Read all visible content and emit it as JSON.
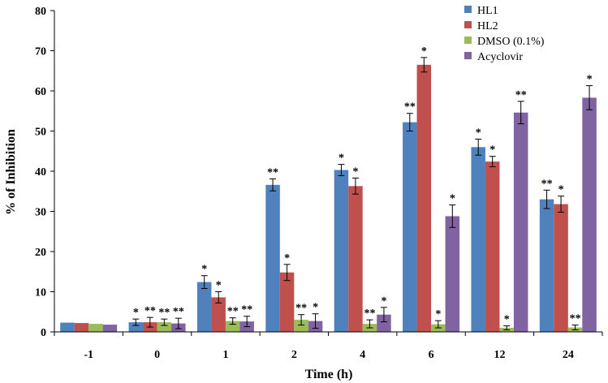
{
  "chart_data": {
    "type": "bar",
    "title": "",
    "xlabel": "Time (h)",
    "ylabel": "% of Inhibition",
    "ylim": [
      0,
      80
    ],
    "yticks": [
      0,
      10,
      20,
      30,
      40,
      50,
      60,
      70,
      80
    ],
    "grid": false,
    "legend_position": "top-right",
    "categories": [
      "-1",
      "0",
      "1",
      "2",
      "4",
      "6",
      "12",
      "24"
    ],
    "series": [
      {
        "name": "HL1",
        "color": "#4F81BD",
        "values": [
          2.3,
          2.4,
          12.4,
          36.6,
          40.3,
          52.2,
          46.0,
          33.0
        ],
        "errors": [
          0,
          0.8,
          1.6,
          1.5,
          1.4,
          2.2,
          2.0,
          2.3
        ],
        "significance": [
          "",
          "*",
          "*",
          "**",
          "*",
          "**",
          "*",
          "**"
        ]
      },
      {
        "name": "HL2",
        "color": "#C0504D",
        "values": [
          2.2,
          2.4,
          8.6,
          14.8,
          36.3,
          66.5,
          42.4,
          31.8
        ],
        "errors": [
          0,
          1.2,
          1.4,
          2.0,
          2.0,
          1.8,
          1.3,
          2.0
        ],
        "significance": [
          "",
          "**",
          "*",
          "*",
          "*",
          "*",
          "*",
          "*"
        ]
      },
      {
        "name": "DMSO (0.1%)",
        "color": "#9BBB59",
        "values": [
          2.0,
          2.4,
          2.7,
          3.0,
          2.0,
          1.9,
          1.0,
          1.1
        ],
        "errors": [
          0,
          0.8,
          0.8,
          1.3,
          1.0,
          0.9,
          0.5,
          0.6
        ],
        "significance": [
          "",
          "**",
          "**",
          "**",
          "**",
          "*",
          "*",
          "**"
        ]
      },
      {
        "name": "Acyclovir",
        "color": "#8064A2",
        "values": [
          1.8,
          2.1,
          2.6,
          2.7,
          4.3,
          28.8,
          54.6,
          58.3
        ],
        "errors": [
          0,
          1.3,
          1.3,
          1.8,
          1.8,
          2.8,
          2.8,
          3.0
        ],
        "significance": [
          "",
          "**",
          "**",
          "*",
          "*",
          "*",
          "**",
          "*"
        ]
      }
    ]
  }
}
